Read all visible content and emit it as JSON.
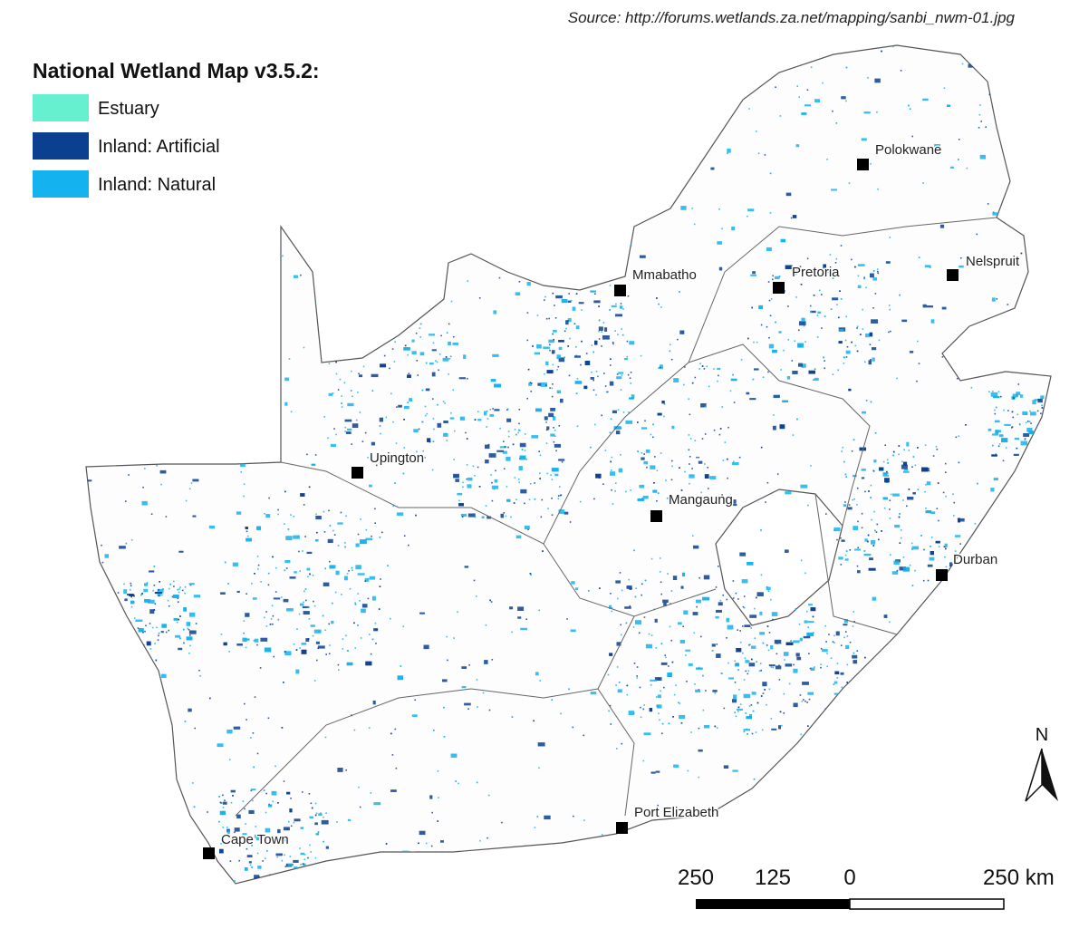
{
  "source": "Source: http://forums.wetlands.za.net/mapping/sanbi_nwm-01.jpg",
  "legend": {
    "title": "National Wetland Map v3.5.2:",
    "items": [
      {
        "name": "Estuary",
        "color": "#66f0cf"
      },
      {
        "name": "Inland: Artificial",
        "color": "#0b3f8f"
      },
      {
        "name": "Inland: Natural",
        "color": "#14b2ee"
      }
    ]
  },
  "cities": [
    "Polokwane",
    "Mmabatho",
    "Pretoria",
    "Nelspruit",
    "Upington",
    "Mangaung",
    "Durban",
    "Port Elizabeth",
    "Cape Town"
  ],
  "north_arrow": "N",
  "scale_bar": {
    "labels": [
      "250",
      "125",
      "0",
      "250 km"
    ]
  }
}
